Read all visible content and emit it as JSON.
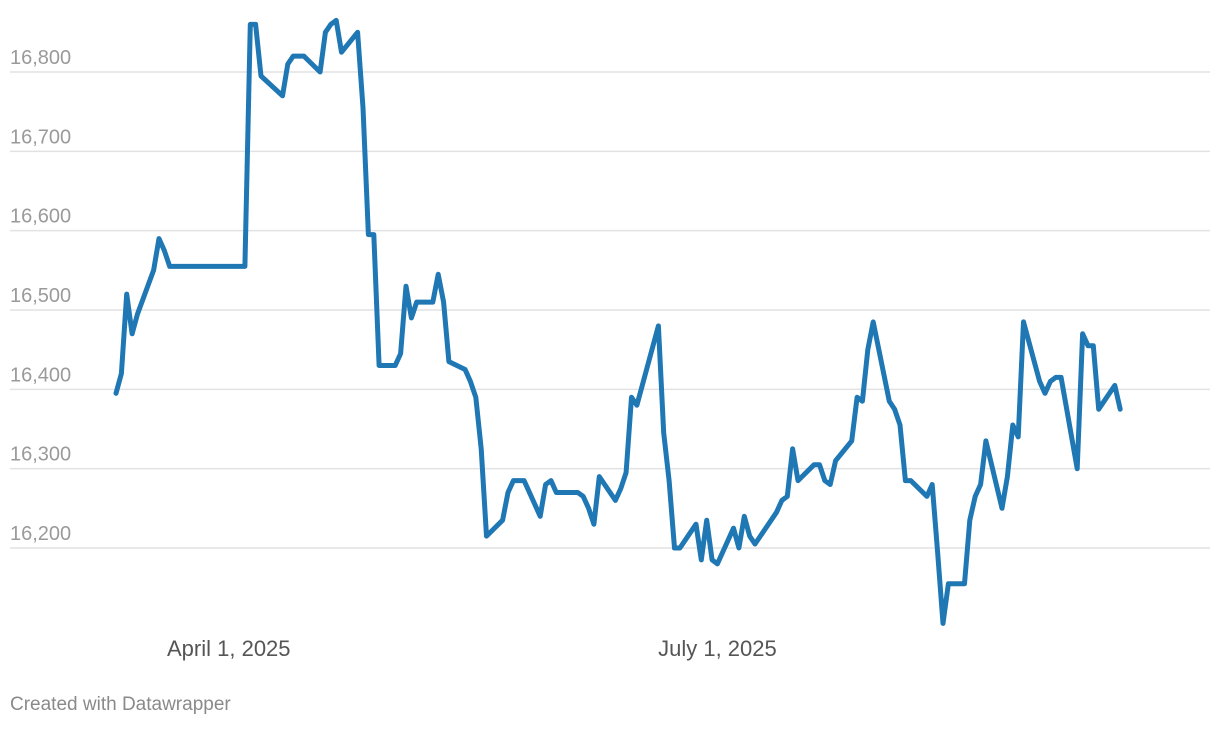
{
  "footer": {
    "credit": "Created with Datawrapper"
  },
  "colors": {
    "line": "#1f77b4",
    "grid": "#e2e2e2",
    "tick_text": "#9a9a9a",
    "x_tick_text": "#555555"
  },
  "chart_data": {
    "type": "line",
    "title": "",
    "xlabel": "",
    "ylabel": "",
    "grid": true,
    "ylim": [
      16100,
      16870
    ],
    "y_ticks": [
      {
        "value": 16200,
        "label": "16,200"
      },
      {
        "value": 16300,
        "label": "16,300"
      },
      {
        "value": 16400,
        "label": "16,400"
      },
      {
        "value": 16500,
        "label": "16,500"
      },
      {
        "value": 16600,
        "label": "16,600"
      },
      {
        "value": 16700,
        "label": "16,700"
      },
      {
        "value": 16800,
        "label": "16,800"
      }
    ],
    "x_range": [
      "2025-03-11",
      "2025-09-27"
    ],
    "x_ticks": [
      {
        "date": "2025-04-01",
        "label": "April 1, 2025"
      },
      {
        "date": "2025-07-01",
        "label": "July 1, 2025"
      }
    ],
    "series": [
      {
        "points": [
          [
            "2025-03-11",
            16395
          ],
          [
            "2025-03-12",
            16420
          ],
          [
            "2025-03-13",
            16520
          ],
          [
            "2025-03-14",
            16470
          ],
          [
            "2025-03-15",
            16495
          ],
          [
            "2025-03-18",
            16550
          ],
          [
            "2025-03-19",
            16590
          ],
          [
            "2025-03-20",
            16575
          ],
          [
            "2025-03-21",
            16555
          ],
          [
            "2025-03-24",
            16555
          ],
          [
            "2025-04-04",
            16555
          ],
          [
            "2025-04-05",
            16860
          ],
          [
            "2025-04-06",
            16860
          ],
          [
            "2025-04-07",
            16795
          ],
          [
            "2025-04-11",
            16770
          ],
          [
            "2025-04-12",
            16810
          ],
          [
            "2025-04-13",
            16820
          ],
          [
            "2025-04-15",
            16820
          ],
          [
            "2025-04-18",
            16800
          ],
          [
            "2025-04-19",
            16850
          ],
          [
            "2025-04-20",
            16860
          ],
          [
            "2025-04-21",
            16865
          ],
          [
            "2025-04-22",
            16825
          ],
          [
            "2025-04-25",
            16850
          ],
          [
            "2025-04-26",
            16755
          ],
          [
            "2025-04-27",
            16595
          ],
          [
            "2025-04-28",
            16595
          ],
          [
            "2025-04-29",
            16430
          ],
          [
            "2025-05-02",
            16430
          ],
          [
            "2025-05-03",
            16445
          ],
          [
            "2025-05-04",
            16530
          ],
          [
            "2025-05-05",
            16490
          ],
          [
            "2025-05-06",
            16510
          ],
          [
            "2025-05-09",
            16510
          ],
          [
            "2025-05-10",
            16545
          ],
          [
            "2025-05-11",
            16510
          ],
          [
            "2025-05-12",
            16435
          ],
          [
            "2025-05-15",
            16425
          ],
          [
            "2025-05-16",
            16410
          ],
          [
            "2025-05-17",
            16390
          ],
          [
            "2025-05-18",
            16325
          ],
          [
            "2025-05-19",
            16215
          ],
          [
            "2025-05-22",
            16235
          ],
          [
            "2025-05-23",
            16270
          ],
          [
            "2025-05-24",
            16285
          ],
          [
            "2025-05-26",
            16285
          ],
          [
            "2025-05-29",
            16240
          ],
          [
            "2025-05-30",
            16280
          ],
          [
            "2025-05-31",
            16285
          ],
          [
            "2025-06-01",
            16270
          ],
          [
            "2025-06-05",
            16270
          ],
          [
            "2025-06-06",
            16265
          ],
          [
            "2025-06-07",
            16250
          ],
          [
            "2025-06-08",
            16230
          ],
          [
            "2025-06-09",
            16290
          ],
          [
            "2025-06-12",
            16260
          ],
          [
            "2025-06-13",
            16275
          ],
          [
            "2025-06-14",
            16295
          ],
          [
            "2025-06-15",
            16390
          ],
          [
            "2025-06-16",
            16380
          ],
          [
            "2025-06-20",
            16480
          ],
          [
            "2025-06-21",
            16345
          ],
          [
            "2025-06-22",
            16285
          ],
          [
            "2025-06-23",
            16200
          ],
          [
            "2025-06-24",
            16200
          ],
          [
            "2025-06-27",
            16230
          ],
          [
            "2025-06-28",
            16185
          ],
          [
            "2025-06-29",
            16235
          ],
          [
            "2025-06-30",
            16185
          ],
          [
            "2025-07-01",
            16180
          ],
          [
            "2025-07-04",
            16225
          ],
          [
            "2025-07-05",
            16200
          ],
          [
            "2025-07-06",
            16240
          ],
          [
            "2025-07-07",
            16215
          ],
          [
            "2025-07-08",
            16205
          ],
          [
            "2025-07-12",
            16245
          ],
          [
            "2025-07-13",
            16260
          ],
          [
            "2025-07-14",
            16265
          ],
          [
            "2025-07-15",
            16325
          ],
          [
            "2025-07-16",
            16285
          ],
          [
            "2025-07-19",
            16305
          ],
          [
            "2025-07-20",
            16305
          ],
          [
            "2025-07-21",
            16285
          ],
          [
            "2025-07-22",
            16280
          ],
          [
            "2025-07-23",
            16310
          ],
          [
            "2025-07-26",
            16335
          ],
          [
            "2025-07-27",
            16390
          ],
          [
            "2025-07-28",
            16385
          ],
          [
            "2025-07-29",
            16450
          ],
          [
            "2025-07-30",
            16485
          ],
          [
            "2025-08-02",
            16385
          ],
          [
            "2025-08-03",
            16375
          ],
          [
            "2025-08-04",
            16355
          ],
          [
            "2025-08-05",
            16285
          ],
          [
            "2025-08-06",
            16285
          ],
          [
            "2025-08-09",
            16265
          ],
          [
            "2025-08-10",
            16280
          ],
          [
            "2025-08-11",
            16195
          ],
          [
            "2025-08-12",
            16105
          ],
          [
            "2025-08-13",
            16155
          ],
          [
            "2025-08-16",
            16155
          ],
          [
            "2025-08-17",
            16235
          ],
          [
            "2025-08-18",
            16265
          ],
          [
            "2025-08-19",
            16280
          ],
          [
            "2025-08-20",
            16335
          ],
          [
            "2025-08-23",
            16250
          ],
          [
            "2025-08-24",
            16290
          ],
          [
            "2025-08-25",
            16355
          ],
          [
            "2025-08-26",
            16340
          ],
          [
            "2025-08-27",
            16485
          ],
          [
            "2025-08-30",
            16410
          ],
          [
            "2025-08-31",
            16395
          ],
          [
            "2025-09-01",
            16410
          ],
          [
            "2025-09-02",
            16415
          ],
          [
            "2025-09-03",
            16415
          ],
          [
            "2025-09-06",
            16300
          ],
          [
            "2025-09-07",
            16470
          ],
          [
            "2025-09-08",
            16455
          ],
          [
            "2025-09-09",
            16455
          ],
          [
            "2025-09-10",
            16375
          ],
          [
            "2025-09-13",
            16405
          ],
          [
            "2025-09-14",
            16375
          ]
        ]
      }
    ]
  }
}
